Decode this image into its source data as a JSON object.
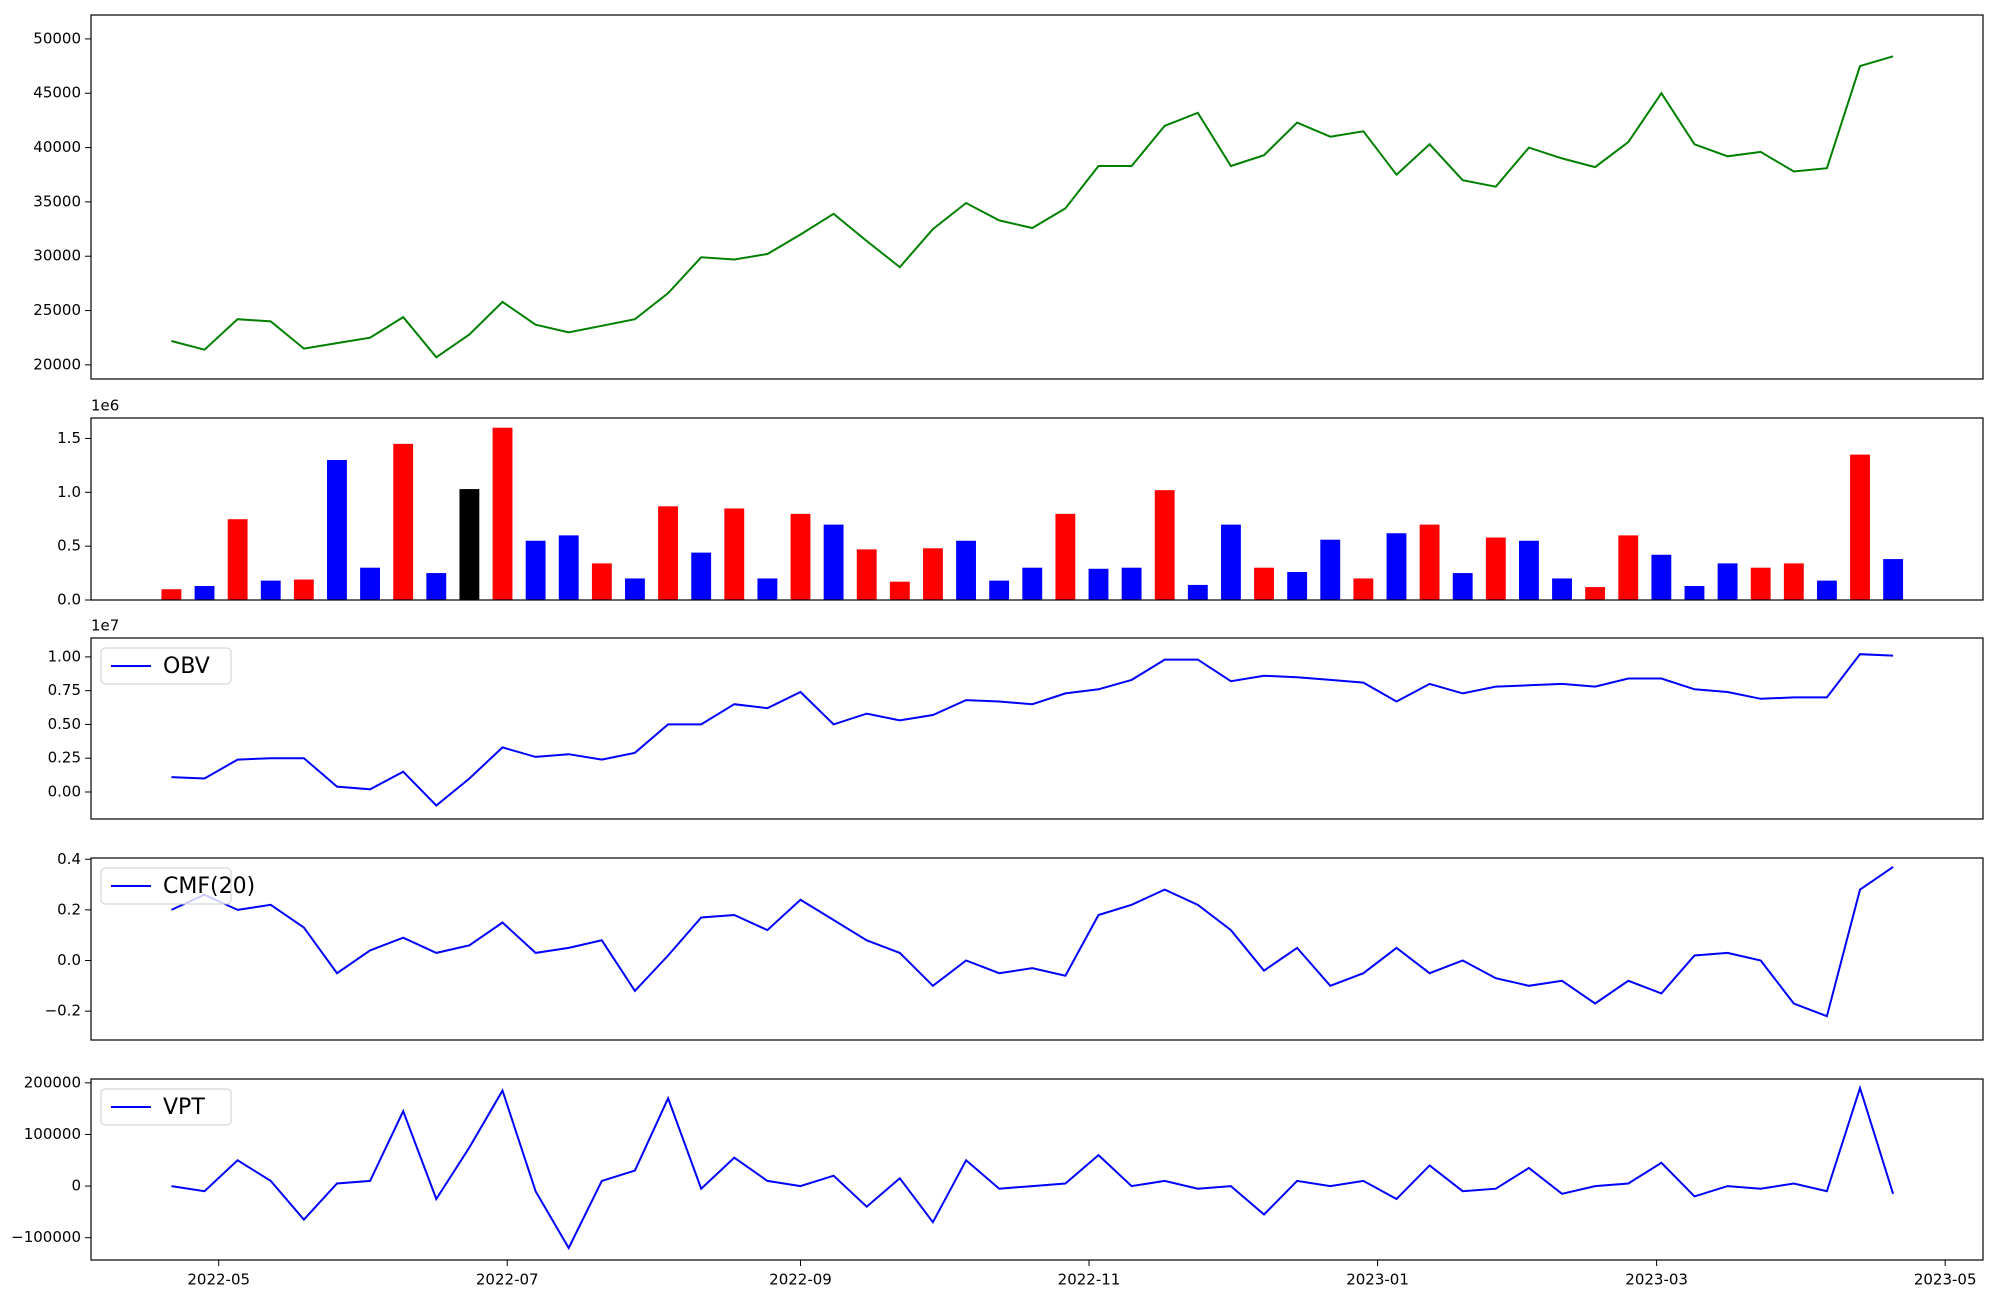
{
  "chart_data": [
    {
      "type": "line",
      "xlim": [
        "2022-04-04",
        "2023-05-09"
      ],
      "ylim": [
        18700,
        52200
      ],
      "yticks": [
        20000,
        25000,
        30000,
        35000,
        40000,
        45000,
        50000
      ],
      "x": [
        "2022-04-21",
        "2022-04-28",
        "2022-05-05",
        "2022-05-12",
        "2022-05-19",
        "2022-05-26",
        "2022-06-02",
        "2022-06-09",
        "2022-06-16",
        "2022-06-23",
        "2022-06-30",
        "2022-07-07",
        "2022-07-14",
        "2022-07-21",
        "2022-07-28",
        "2022-08-04",
        "2022-08-11",
        "2022-08-18",
        "2022-08-25",
        "2022-09-01",
        "2022-09-08",
        "2022-09-15",
        "2022-09-22",
        "2022-09-29",
        "2022-10-06",
        "2022-10-13",
        "2022-10-20",
        "2022-10-27",
        "2022-11-03",
        "2022-11-10",
        "2022-11-17",
        "2022-11-24",
        "2022-12-01",
        "2022-12-08",
        "2022-12-15",
        "2022-12-22",
        "2022-12-29",
        "2023-01-05",
        "2023-01-12",
        "2023-01-19",
        "2023-01-26",
        "2023-02-02",
        "2023-02-09",
        "2023-02-16",
        "2023-02-23",
        "2023-03-02",
        "2023-03-09",
        "2023-03-16",
        "2023-03-23",
        "2023-03-30",
        "2023-04-06",
        "2023-04-13",
        "2023-04-20"
      ],
      "series": [
        {
          "color": "#008000",
          "values": [
            22200,
            21400,
            24200,
            24000,
            21500,
            22000,
            22500,
            24400,
            20700,
            22800,
            25800,
            23700,
            23000,
            23600,
            24200,
            26600,
            29900,
            29700,
            30200,
            32000,
            33900,
            31400,
            29000,
            32500,
            34900,
            33300,
            32600,
            34400,
            38300,
            38300,
            42000,
            43200,
            38300,
            39300,
            42300,
            41000,
            41500,
            37500,
            40300,
            37000,
            36400,
            40000,
            39000,
            38200,
            40500,
            45000,
            40300,
            39200,
            39600,
            37800,
            38100,
            47500,
            48400
          ]
        }
      ]
    },
    {
      "type": "bar",
      "xlim": [
        "2022-04-04",
        "2023-05-09"
      ],
      "ylim": [
        0,
        1690000
      ],
      "offset_text": "1e6",
      "yticks": [
        {
          "value": 0,
          "label": "0.0"
        },
        {
          "value": 500000,
          "label": "0.5"
        },
        {
          "value": 1000000,
          "label": "1.0"
        },
        {
          "value": 1500000,
          "label": "1.5"
        }
      ],
      "x": [
        "2022-04-21",
        "2022-04-28",
        "2022-05-05",
        "2022-05-12",
        "2022-05-19",
        "2022-05-26",
        "2022-06-02",
        "2022-06-09",
        "2022-06-16",
        "2022-06-23",
        "2022-06-30",
        "2022-07-07",
        "2022-07-14",
        "2022-07-21",
        "2022-07-28",
        "2022-08-04",
        "2022-08-11",
        "2022-08-18",
        "2022-08-25",
        "2022-09-01",
        "2022-09-08",
        "2022-09-15",
        "2022-09-22",
        "2022-09-29",
        "2022-10-06",
        "2022-10-13",
        "2022-10-20",
        "2022-10-27",
        "2022-11-03",
        "2022-11-10",
        "2022-11-17",
        "2022-11-24",
        "2022-12-01",
        "2022-12-08",
        "2022-12-15",
        "2022-12-22",
        "2022-12-29",
        "2023-01-05",
        "2023-01-12",
        "2023-01-19",
        "2023-01-26",
        "2023-02-02",
        "2023-02-09",
        "2023-02-16",
        "2023-02-23",
        "2023-03-02",
        "2023-03-09",
        "2023-03-16",
        "2023-03-23",
        "2023-03-30",
        "2023-04-06",
        "2023-04-13",
        "2023-04-20"
      ],
      "series": [
        {
          "values": [
            100000,
            130000,
            750000,
            180000,
            190000,
            1300000,
            300000,
            1450000,
            250000,
            1030000,
            1600000,
            550000,
            600000,
            340000,
            200000,
            870000,
            440000,
            850000,
            200000,
            800000,
            700000,
            470000,
            170000,
            480000,
            550000,
            180000,
            300000,
            800000,
            290000,
            300000,
            1020000,
            140000,
            700000,
            300000,
            260000,
            560000,
            200000,
            620000,
            700000,
            250000,
            580000,
            550000,
            200000,
            120000,
            600000,
            420000,
            130000,
            340000,
            300000,
            340000,
            180000,
            1350000,
            380000
          ],
          "colors": [
            "red",
            "blue",
            "red",
            "blue",
            "red",
            "blue",
            "blue",
            "red",
            "blue",
            "black",
            "red",
            "blue",
            "blue",
            "red",
            "blue",
            "red",
            "blue",
            "red",
            "blue",
            "red",
            "blue",
            "red",
            "red",
            "red",
            "blue",
            "blue",
            "blue",
            "red",
            "blue",
            "blue",
            "red",
            "blue",
            "blue",
            "red",
            "blue",
            "blue",
            "red",
            "blue",
            "red",
            "blue",
            "red",
            "blue",
            "blue",
            "red",
            "red",
            "blue",
            "blue",
            "blue",
            "red",
            "red",
            "blue",
            "red",
            "blue"
          ]
        }
      ]
    },
    {
      "type": "line",
      "xlim": [
        "2022-04-04",
        "2023-05-09"
      ],
      "ylim": [
        -2000000,
        11400000
      ],
      "offset_text": "1e7",
      "legend": "upper left",
      "yticks": [
        {
          "value": 0,
          "label": "0.00"
        },
        {
          "value": 2500000,
          "label": "0.25"
        },
        {
          "value": 5000000,
          "label": "0.50"
        },
        {
          "value": 7500000,
          "label": "0.75"
        },
        {
          "value": 10000000,
          "label": "1.00"
        }
      ],
      "x": [
        "2022-04-21",
        "2022-04-28",
        "2022-05-05",
        "2022-05-12",
        "2022-05-19",
        "2022-05-26",
        "2022-06-02",
        "2022-06-09",
        "2022-06-16",
        "2022-06-23",
        "2022-06-30",
        "2022-07-07",
        "2022-07-14",
        "2022-07-21",
        "2022-07-28",
        "2022-08-04",
        "2022-08-11",
        "2022-08-18",
        "2022-08-25",
        "2022-09-01",
        "2022-09-08",
        "2022-09-15",
        "2022-09-22",
        "2022-09-29",
        "2022-10-06",
        "2022-10-13",
        "2022-10-20",
        "2022-10-27",
        "2022-11-03",
        "2022-11-10",
        "2022-11-17",
        "2022-11-24",
        "2022-12-01",
        "2022-12-08",
        "2022-12-15",
        "2022-12-22",
        "2022-12-29",
        "2023-01-05",
        "2023-01-12",
        "2023-01-19",
        "2023-01-26",
        "2023-02-02",
        "2023-02-09",
        "2023-02-16",
        "2023-02-23",
        "2023-03-02",
        "2023-03-09",
        "2023-03-16",
        "2023-03-23",
        "2023-03-30",
        "2023-04-06",
        "2023-04-13",
        "2023-04-20"
      ],
      "series": [
        {
          "name": "OBV",
          "color": "#0000ff",
          "values": [
            1100000,
            1000000,
            2400000,
            2500000,
            2500000,
            400000,
            200000,
            1500000,
            -1000000,
            1000000,
            3300000,
            2600000,
            2800000,
            2400000,
            2900000,
            5000000,
            5000000,
            6500000,
            6200000,
            7400000,
            5000000,
            5800000,
            5300000,
            5700000,
            6800000,
            6700000,
            6500000,
            7300000,
            7600000,
            8300000,
            9800000,
            9800000,
            8200000,
            8600000,
            8500000,
            8300000,
            8100000,
            6700000,
            8000000,
            7300000,
            7800000,
            7900000,
            8000000,
            7800000,
            8400000,
            8400000,
            7600000,
            7400000,
            6900000,
            7000000,
            7000000,
            10200000,
            10100000
          ]
        }
      ]
    },
    {
      "type": "line",
      "xlim": [
        "2022-04-04",
        "2023-05-09"
      ],
      "ylim": [
        -0.314,
        0.405
      ],
      "legend": "upper left",
      "yticks": [
        {
          "value": -0.2,
          "label": "−0.2"
        },
        {
          "value": 0,
          "label": "0.0"
        },
        {
          "value": 0.2,
          "label": "0.2"
        },
        {
          "value": 0.4,
          "label": "0.4"
        }
      ],
      "x": [
        "2022-04-21",
        "2022-04-28",
        "2022-05-05",
        "2022-05-12",
        "2022-05-19",
        "2022-05-26",
        "2022-06-02",
        "2022-06-09",
        "2022-06-16",
        "2022-06-23",
        "2022-06-30",
        "2022-07-07",
        "2022-07-14",
        "2022-07-21",
        "2022-07-28",
        "2022-08-04",
        "2022-08-11",
        "2022-08-18",
        "2022-08-25",
        "2022-09-01",
        "2022-09-08",
        "2022-09-15",
        "2022-09-22",
        "2022-09-29",
        "2022-10-06",
        "2022-10-13",
        "2022-10-20",
        "2022-10-27",
        "2022-11-03",
        "2022-11-10",
        "2022-11-17",
        "2022-11-24",
        "2022-12-01",
        "2022-12-08",
        "2022-12-15",
        "2022-12-22",
        "2022-12-29",
        "2023-01-05",
        "2023-01-12",
        "2023-01-19",
        "2023-01-26",
        "2023-02-02",
        "2023-02-09",
        "2023-02-16",
        "2023-02-23",
        "2023-03-02",
        "2023-03-09",
        "2023-03-16",
        "2023-03-23",
        "2023-03-30",
        "2023-04-06",
        "2023-04-13",
        "2023-04-20"
      ],
      "series": [
        {
          "name": "CMF(20)",
          "color": "#0000ff",
          "values": [
            0.2,
            0.26,
            0.2,
            0.22,
            0.13,
            -0.05,
            0.04,
            0.09,
            0.03,
            0.06,
            0.15,
            0.03,
            0.05,
            0.08,
            -0.12,
            0.02,
            0.17,
            0.18,
            0.12,
            0.24,
            0.16,
            0.08,
            0.03,
            -0.1,
            0,
            -0.05,
            -0.03,
            -0.06,
            0.18,
            0.22,
            0.28,
            0.22,
            0.12,
            -0.04,
            0.05,
            -0.1,
            -0.05,
            0.05,
            -0.05,
            0,
            -0.07,
            -0.1,
            -0.08,
            -0.17,
            -0.08,
            -0.13,
            0.02,
            0.03,
            0,
            -0.17,
            -0.22,
            0.28,
            0.37
          ]
        }
      ]
    },
    {
      "type": "line",
      "xlim": [
        "2022-04-04",
        "2023-05-09"
      ],
      "ylim": [
        -143200,
        207400
      ],
      "legend": "upper left",
      "yticks": [
        {
          "value": -100000,
          "label": "−100000"
        },
        0,
        100000,
        200000
      ],
      "xticks": [
        {
          "value": "2022-05-01",
          "label": "2022-05"
        },
        {
          "value": "2022-07-01",
          "label": "2022-07"
        },
        {
          "value": "2022-09-01",
          "label": "2022-09"
        },
        {
          "value": "2022-11-01",
          "label": "2022-11"
        },
        {
          "value": "2023-01-01",
          "label": "2023-01"
        },
        {
          "value": "2023-03-01",
          "label": "2023-03"
        },
        {
          "value": "2023-05-01",
          "label": "2023-05"
        }
      ],
      "x": [
        "2022-04-21",
        "2022-04-28",
        "2022-05-05",
        "2022-05-12",
        "2022-05-19",
        "2022-05-26",
        "2022-06-02",
        "2022-06-09",
        "2022-06-16",
        "2022-06-23",
        "2022-06-30",
        "2022-07-07",
        "2022-07-14",
        "2022-07-21",
        "2022-07-28",
        "2022-08-04",
        "2022-08-11",
        "2022-08-18",
        "2022-08-25",
        "2022-09-01",
        "2022-09-08",
        "2022-09-15",
        "2022-09-22",
        "2022-09-29",
        "2022-10-06",
        "2022-10-13",
        "2022-10-20",
        "2022-10-27",
        "2022-11-03",
        "2022-11-10",
        "2022-11-17",
        "2022-11-24",
        "2022-12-01",
        "2022-12-08",
        "2022-12-15",
        "2022-12-22",
        "2022-12-29",
        "2023-01-05",
        "2023-01-12",
        "2023-01-19",
        "2023-01-26",
        "2023-02-02",
        "2023-02-09",
        "2023-02-16",
        "2023-02-23",
        "2023-03-02",
        "2023-03-09",
        "2023-03-16",
        "2023-03-23",
        "2023-03-30",
        "2023-04-06",
        "2023-04-13",
        "2023-04-20"
      ],
      "series": [
        {
          "name": "VPT",
          "color": "#0000ff",
          "values": [
            0,
            -10000,
            50000,
            10000,
            -65000,
            5000,
            10000,
            145000,
            -25000,
            75000,
            185000,
            -10000,
            -120000,
            10000,
            30000,
            170000,
            -5000,
            55000,
            10000,
            0,
            20000,
            -40000,
            15000,
            -70000,
            50000,
            -5000,
            0,
            5000,
            60000,
            0,
            10000,
            -5000,
            0,
            -55000,
            10000,
            0,
            10000,
            -25000,
            40000,
            -10000,
            -5000,
            35000,
            -15000,
            0,
            5000,
            45000,
            -20000,
            0,
            -5000,
            5000,
            -10000,
            190000,
            -15000
          ]
        }
      ]
    }
  ]
}
